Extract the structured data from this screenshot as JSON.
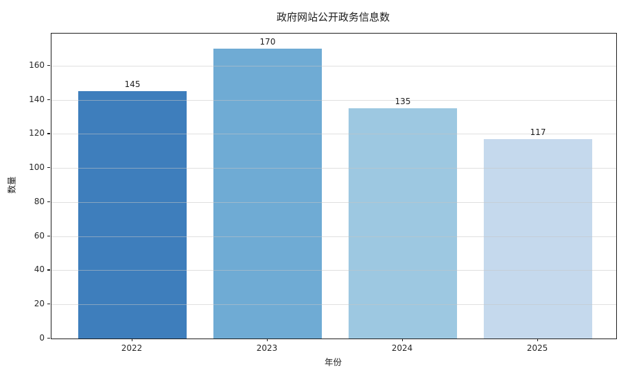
{
  "chart_data": {
    "type": "bar",
    "title": "政府网站公开政务信息数",
    "xlabel": "年份",
    "ylabel": "数量",
    "categories": [
      "2022",
      "2023",
      "2024",
      "2025"
    ],
    "values": [
      145,
      170,
      135,
      117
    ],
    "value_labels": [
      "145",
      "170",
      "135",
      "117"
    ],
    "bar_colors": [
      "#3E7EBC",
      "#6FABD4",
      "#9DC8E1",
      "#C5D9ED"
    ],
    "yticks": [
      0,
      20,
      40,
      60,
      80,
      100,
      120,
      140,
      160
    ],
    "ylim": [
      0,
      178.8
    ],
    "grid": true,
    "legend": "none",
    "background_color": "#ffffff",
    "spine_color": "#1c1c1c",
    "gridline_color": "#c4c4c4"
  }
}
